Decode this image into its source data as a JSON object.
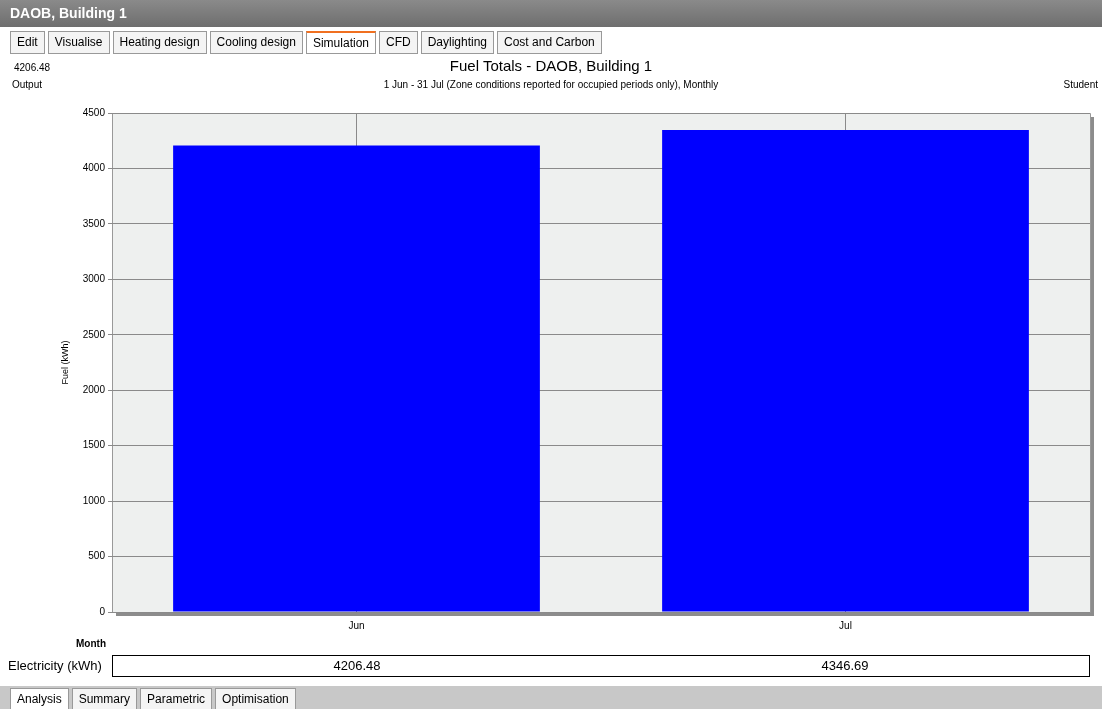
{
  "chart_data": {
    "type": "bar",
    "title": "Fuel Totals - DAOB, Building 1",
    "subtitle": "1 Jun - 31 Jul (Zone conditions reported for occupied periods only), Monthly",
    "xlabel": "Month",
    "ylabel": "Fuel (kWh)",
    "categories": [
      "Jun",
      "Jul"
    ],
    "series": [
      {
        "name": "Electricity (kWh)",
        "color": "#0000ff",
        "values": [
          4206.48,
          4346.69
        ]
      }
    ],
    "ylim": [
      0,
      4500
    ],
    "yticks": [
      0,
      500,
      1000,
      1500,
      2000,
      2500,
      3000,
      3500,
      4000,
      4500
    ],
    "grid": true,
    "legend": false,
    "data_labels": true,
    "annotations": [
      "DAOB, Building 1",
      "Edit",
      "Visualise",
      "Heating design",
      "Cooling design",
      "Simulation",
      "CFD",
      "Daylighting",
      "Cost and Carbon",
      "4206.48",
      "Output",
      "Student",
      "Analysis",
      "Summary",
      "Parametric",
      "Optimisation"
    ]
  }
}
